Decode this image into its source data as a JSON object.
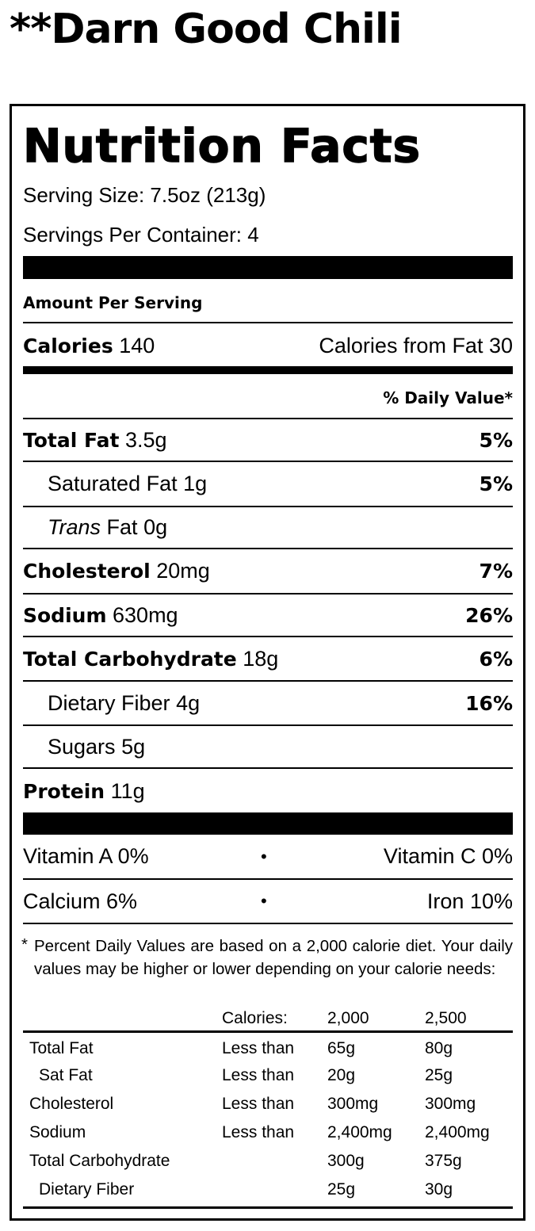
{
  "title": "**Darn Good Chili",
  "header": "Nutrition Facts",
  "serving_size": "Serving Size: 7.5oz (213g)",
  "servings_per_container": "Servings Per Container: 4",
  "amount_per_serving": "Amount Per Serving",
  "calories": {
    "label": "Calories",
    "value": "140",
    "from_fat": "Calories from Fat 30"
  },
  "daily_value_header": "% Daily Value*",
  "nutrients": [
    {
      "label": "Total Fat",
      "amount": "3.5g",
      "dv": "5%",
      "bold": true
    },
    {
      "label": "Saturated Fat",
      "amount": "1g",
      "dv": "5%"
    },
    {
      "label": "Trans",
      "label2": "Fat",
      "amount": "0g",
      "dv": ""
    },
    {
      "label": "Cholesterol",
      "amount": "20mg",
      "dv": "7%",
      "bold": true
    },
    {
      "label": "Sodium",
      "amount": "630mg",
      "dv": "26%",
      "bold": true
    },
    {
      "label": "Total Carbohydrate",
      "amount": "18g",
      "dv": "6%",
      "bold": true
    },
    {
      "label": "Dietary Fiber",
      "amount": "4g",
      "dv": "16%"
    },
    {
      "label": "Sugars",
      "amount": "5g",
      "dv": ""
    },
    {
      "label": "Protein",
      "amount": "11g",
      "dv": "",
      "bold": true
    }
  ],
  "vitamins": [
    {
      "left": "Vitamin A 0%",
      "right": "Vitamin C 0%"
    },
    {
      "left": "Calcium 6%",
      "right": "Iron 10%"
    }
  ],
  "bullet": "•",
  "footnote": {
    "star": "*",
    "text": "Percent Daily Values are based on a 2,000 calorie diet. Your daily values may be higher or lower depending on your calorie needs:",
    "header": [
      "",
      "Calories:",
      "2,000",
      "2,500"
    ],
    "rows": [
      [
        "Total Fat",
        "Less than",
        "65g",
        "80g"
      ],
      [
        "Sat Fat",
        "Less than",
        "20g",
        "25g"
      ],
      [
        "Cholesterol",
        "Less than",
        "300mg",
        "300mg"
      ],
      [
        "Sodium",
        "Less than",
        "2,400mg",
        "2,400mg"
      ],
      [
        "Total Carbohydrate",
        "",
        "300g",
        "375g"
      ],
      [
        "Dietary Fiber",
        "",
        "25g",
        "30g"
      ]
    ]
  }
}
